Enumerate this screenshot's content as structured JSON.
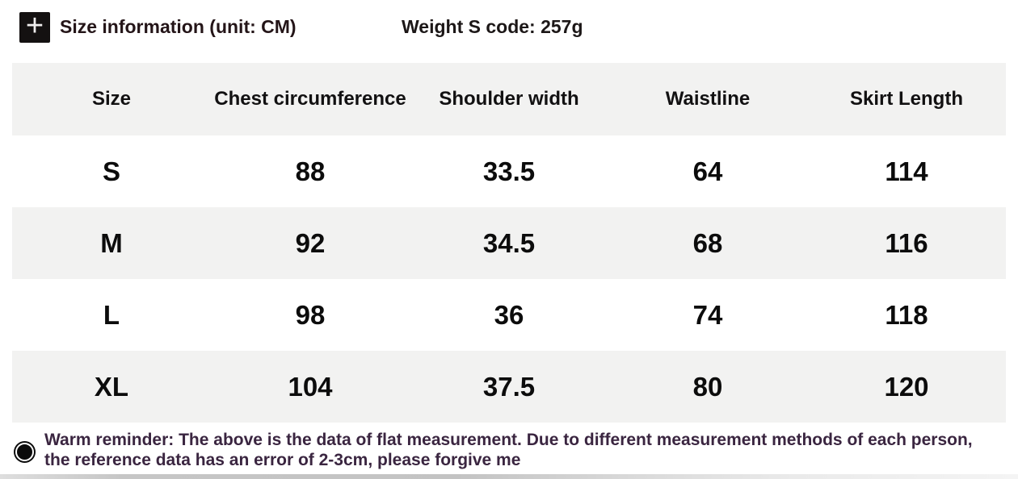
{
  "header": {
    "title": "Size information (unit: CM)",
    "weight_note": "Weight S code: 257g",
    "icon": {
      "name": "plus-icon",
      "glyph": "+",
      "bg_color": "#141111",
      "fg_color": "#f0eeee"
    }
  },
  "chart_data": {
    "type": "table",
    "title": "Size information (unit: CM)",
    "unit": "CM",
    "columns": [
      "Size",
      "Chest circumference",
      "Shoulder width",
      "Waistline",
      "Skirt Length"
    ],
    "rows": [
      {
        "cells": [
          "S",
          "88",
          "33.5",
          "64",
          "114"
        ]
      },
      {
        "cells": [
          "M",
          "92",
          "34.5",
          "68",
          "116"
        ]
      },
      {
        "cells": [
          "L",
          "98",
          "36",
          "74",
          "118"
        ]
      },
      {
        "cells": [
          "XL",
          "104",
          "37.5",
          "80",
          "120"
        ]
      }
    ],
    "layout": {
      "stripe_color": "#f2f2f1",
      "striped_rows": [
        "header",
        "M",
        "XL"
      ],
      "grid": false
    }
  },
  "reminder": {
    "icon": {
      "name": "record-circle-icon",
      "glyph": "◉"
    },
    "line1": "Warm reminder: The above is the data of flat measurement. Due to different measurement methods of each person,",
    "line2": "the reference data has an error of 2-3cm, please forgive me",
    "full_text": "Warm reminder: The above is the data of flat measurement. Due to different measurement methods of each person, the reference data has an error of 2-3cm, please forgive me",
    "text_color": "#3a2540"
  },
  "colors": {
    "page_background": "#ffffff",
    "table_stripe": "#f2f2f1",
    "table_text": "#0c0c0c",
    "title_text": "#241518",
    "bottom_strip": "#c6c6c6"
  }
}
